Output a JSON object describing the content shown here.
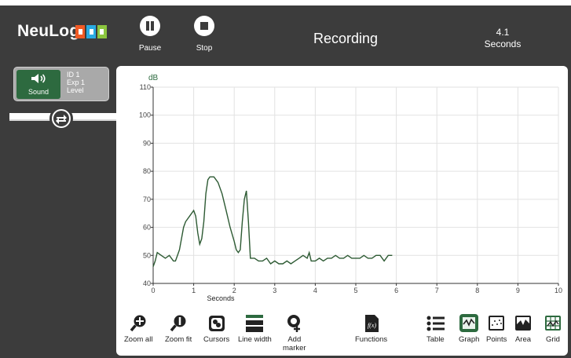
{
  "brand": {
    "name": "NeuLog"
  },
  "topbar": {
    "pause_label": "Pause",
    "stop_label": "Stop",
    "status": "Recording",
    "time_value": "4.1",
    "time_unit": "Seconds"
  },
  "sensor": {
    "name": "Sound",
    "id": "ID 1",
    "exp": "Exp 1",
    "mode": "Level"
  },
  "toolbar": {
    "zoom_all": "Zoom all",
    "zoom_fit": "Zoom fit",
    "cursors": "Cursors",
    "line_width": "Line width",
    "add_marker_1": "Add",
    "add_marker_2": "marker",
    "functions": "Functions",
    "table": "Table",
    "graph": "Graph",
    "points": "Points",
    "area": "Area",
    "grid": "Grid"
  },
  "colors": {
    "accent": "#2d6a3f",
    "frame": "#3c3c3c",
    "line": "#2d5a33"
  },
  "chart_data": {
    "type": "line",
    "ylabel": "dB",
    "xlabel": "Seconds",
    "xlim": [
      0,
      10
    ],
    "ylim": [
      40,
      110
    ],
    "x_ticks": [
      0,
      1,
      2,
      3,
      4,
      5,
      6,
      7,
      8,
      9,
      10
    ],
    "y_ticks": [
      40,
      50,
      60,
      70,
      80,
      90,
      100,
      110
    ],
    "grid": true,
    "series": [
      {
        "x": [
          0,
          0.05,
          0.1,
          0.2,
          0.3,
          0.4,
          0.5,
          0.55,
          0.6,
          0.65,
          0.7,
          0.75,
          0.8,
          0.9,
          1.0,
          1.05,
          1.1,
          1.15,
          1.2,
          1.25,
          1.3,
          1.35,
          1.4,
          1.5,
          1.6,
          1.7,
          1.8,
          1.9,
          2.0,
          2.05,
          2.1,
          2.15,
          2.2,
          2.25,
          2.3,
          2.35,
          2.4,
          2.5,
          2.6,
          2.7,
          2.8,
          2.9,
          3.0,
          3.1,
          3.2,
          3.3,
          3.4,
          3.5,
          3.6,
          3.7,
          3.8,
          3.85,
          3.9,
          4.0,
          4.1,
          4.2,
          4.3,
          4.4,
          4.5,
          4.6,
          4.7,
          4.8,
          4.9,
          5.0,
          5.1,
          5.2,
          5.3,
          5.4,
          5.5,
          5.6,
          5.7,
          5.8,
          5.9
        ],
        "values": [
          46,
          48,
          51,
          50,
          49,
          50,
          48,
          48,
          50,
          52,
          56,
          60,
          62,
          64,
          66,
          64,
          58,
          54,
          56,
          62,
          72,
          77,
          78,
          78,
          76,
          72,
          66,
          60,
          55,
          52,
          51,
          52,
          62,
          70,
          73,
          62,
          49,
          49,
          48,
          48,
          49,
          47,
          48,
          47,
          47,
          48,
          47,
          48,
          49,
          50,
          49,
          51,
          48,
          48,
          49,
          48,
          49,
          49,
          50,
          49,
          49,
          50,
          49,
          49,
          49,
          50,
          49,
          49,
          50,
          50,
          48,
          50,
          50
        ]
      }
    ]
  }
}
